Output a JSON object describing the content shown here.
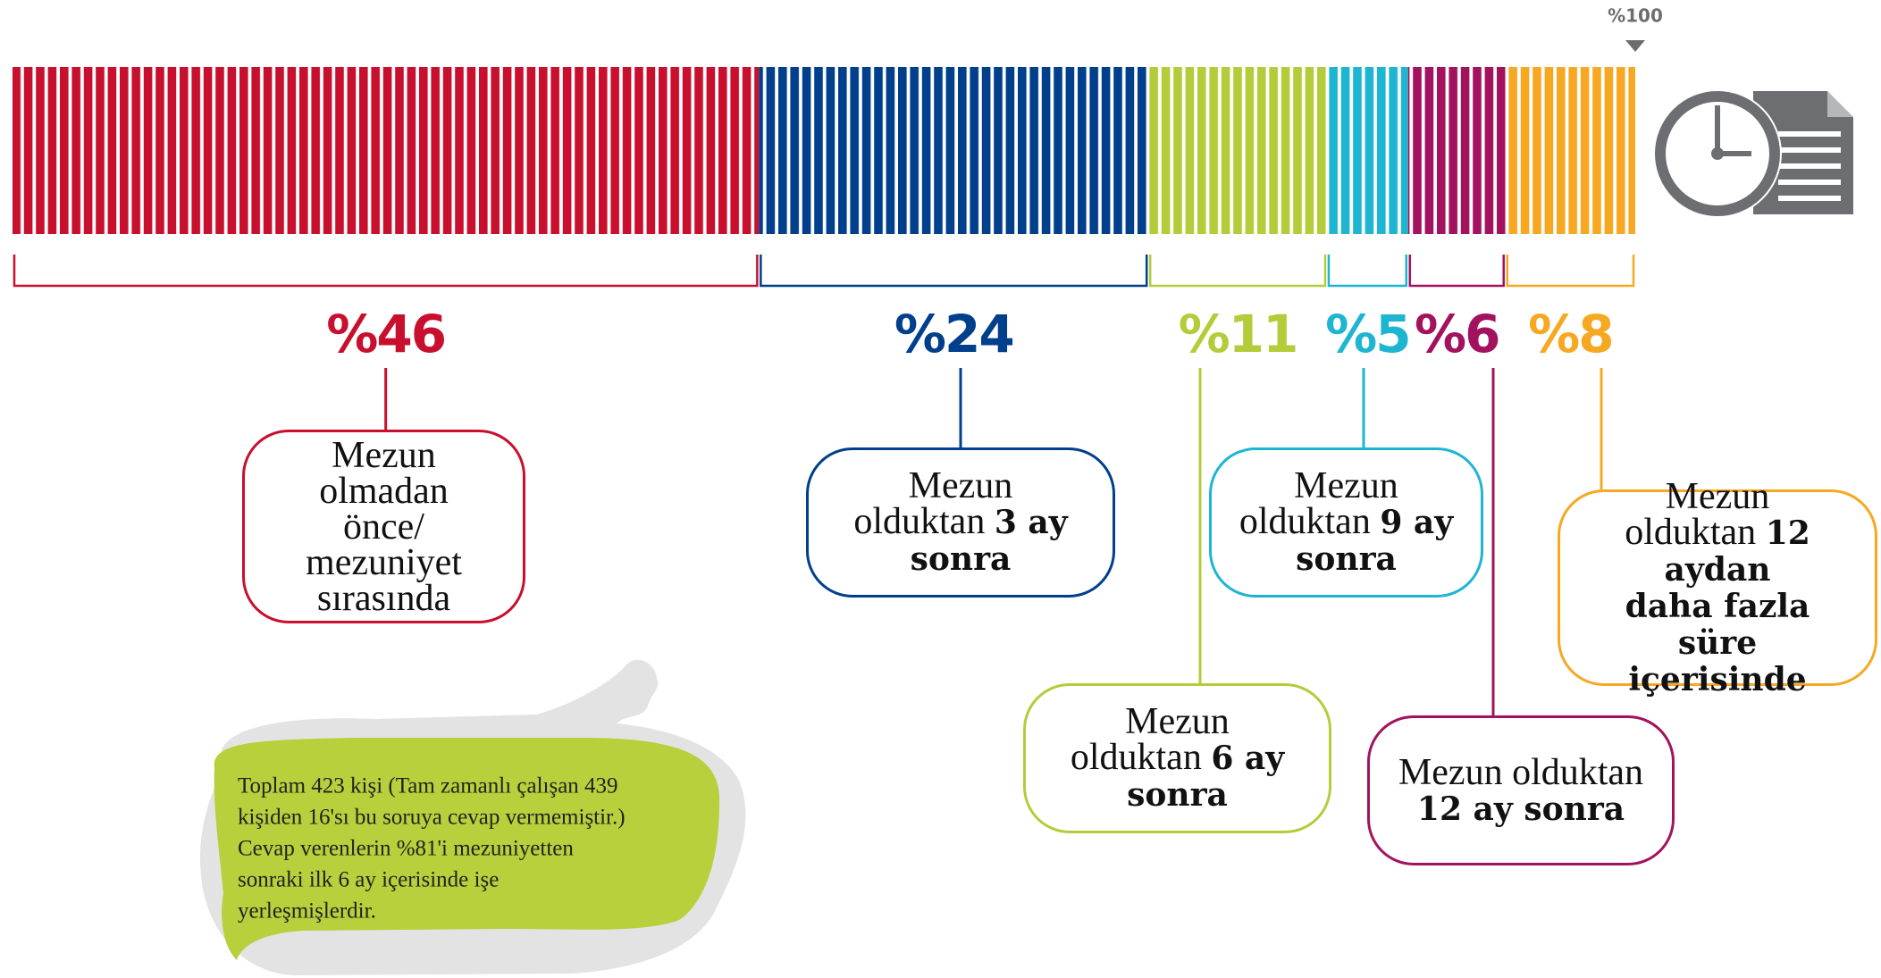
{
  "chart_data": {
    "type": "bar",
    "orientation": "horizontal",
    "stacked": true,
    "values": [
      46,
      24,
      11,
      5,
      6,
      8
    ],
    "value_labels": [
      "%46",
      "%24",
      "%11",
      "%5",
      "%6",
      "%8"
    ],
    "colors": [
      "#c8102e",
      "#003f8c",
      "#b5cc3a",
      "#1eb5d2",
      "#a3125f",
      "#f7a823"
    ],
    "captions": [
      {
        "regular": "Mezun olmadan önce/ mezuniyet sırasında"
      },
      {
        "regular": "Mezun olduktan",
        "bold": "3 ay sonra"
      },
      {
        "regular": "Mezun olduktan",
        "bold": "6 ay sonra"
      },
      {
        "regular": "Mezun olduktan",
        "bold": "9 ay sonra"
      },
      {
        "regular": "Mezun olduktan",
        "bold": "12 ay sonra"
      },
      {
        "regular": "Mezun olduktan",
        "bold": "12 aydan daha fazla süre içerisinde"
      }
    ],
    "xlim": [
      0,
      100
    ],
    "xticks": [
      {
        "value": 100,
        "label": "%100"
      }
    ],
    "note": [
      "Toplam 423 kişi (Tam zamanlı çalışan 439",
      "kişiden 16'sı bu soruya cevap vermemiştir.)",
      "Cevap verenlerin %81'i  mezuniyetten",
      "sonraki ilk 6 ay içerisinde işe",
      "yerleşmişlerdir."
    ]
  }
}
